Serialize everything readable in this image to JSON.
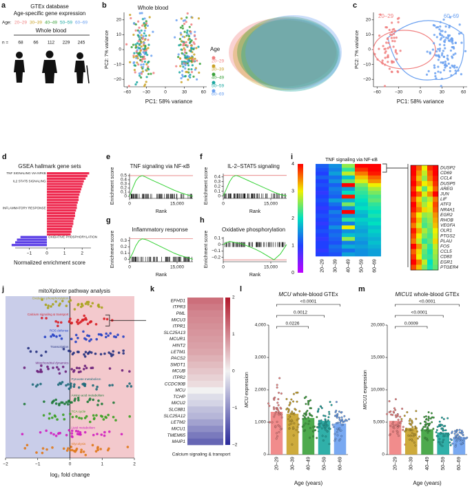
{
  "age_groups": [
    "20–29",
    "30–39",
    "40–49",
    "50–59",
    "60–69"
  ],
  "age_colors": [
    "#f07f7f",
    "#c9a227",
    "#3aa13a",
    "#1aa7a0",
    "#6aa0f0"
  ],
  "panel_a": {
    "letter": "a",
    "title": "GTEx database",
    "subtitle": "Age-specific gene expression",
    "age_label": "Age:",
    "tissue": "Whole blood",
    "n_label": "n =",
    "n": [
      68,
      66,
      112,
      229,
      245
    ]
  },
  "panel_b": {
    "letter": "b",
    "title": "Whole blood",
    "xlabel": "PC1: 58% variance",
    "ylabel": "PC2: 7% variance",
    "legend_title": "Age",
    "xlim": [
      -65,
      65
    ],
    "ylim": [
      -25,
      25
    ],
    "xticks": [
      {
        "value": -60,
        "label": "−60"
      },
      {
        "value": -30,
        "label": "−30"
      },
      0,
      30,
      60
    ],
    "yticks": [
      {
        "value": -20,
        "label": "−20"
      },
      {
        "value": -10,
        "label": "−10"
      },
      0,
      10,
      20
    ]
  },
  "panel_c": {
    "letter": "c",
    "xlabel": "PC1: 58% variance",
    "ylabel": "PC2: 7% variance",
    "xlim": [
      -65,
      65
    ],
    "ylim": [
      -25,
      25
    ],
    "xticks": [
      {
        "value": -60,
        "label": "−60"
      },
      {
        "value": -30,
        "label": "−30"
      },
      0,
      30,
      60
    ],
    "yticks": [
      {
        "value": -20,
        "label": "−20"
      },
      {
        "value": -10,
        "label": "−10"
      },
      0,
      10,
      20
    ]
  },
  "panel_d": {
    "letter": "d",
    "type": "bar",
    "title": "GSEA hallmark gene sets",
    "xlabel": "Normalized enrichment score",
    "categories": [
      "TNF SIGNALING VIA NFKB",
      null,
      null,
      "IL2 STAT5 SIGNALING",
      null,
      null,
      null,
      null,
      null,
      null,
      null,
      null,
      null,
      "INFLAMMATORY RESPONSE",
      null,
      null,
      null,
      null,
      null,
      null,
      null,
      null,
      null,
      null,
      "OXIDATIVE PHOSPHORYLATION",
      null,
      null,
      null
    ],
    "values": [
      2.4,
      2.3,
      2.2,
      2.1,
      2.05,
      2.0,
      1.95,
      1.9,
      1.85,
      1.8,
      1.8,
      1.75,
      1.7,
      1.7,
      1.65,
      1.6,
      1.6,
      1.55,
      1.5,
      1.5,
      1.45,
      1.4,
      1.4,
      1.35,
      -1.5,
      -1.7,
      -1.8,
      -2.0
    ],
    "color_positive": "#ee2a50",
    "color_negative": "#5a3ee6",
    "xlim": [
      -1.8,
      2.5
    ],
    "xticks": [
      {
        "value": -1,
        "label": "−1"
      },
      0,
      1,
      2
    ]
  },
  "panel_efgh": [
    {
      "letter": "e",
      "title": "TNF signaling via NF-κB",
      "ylabel": "Enrichment score",
      "xlabel": "Rank",
      "xlim": [
        0,
        20000
      ],
      "xticks": [
        0,
        {
          "value": 15000,
          "label": "15,000"
        }
      ],
      "ylim": [
        -0.05,
        0.55
      ],
      "yticks": [
        0,
        0.1,
        0.2,
        0.3,
        0.4,
        0.5
      ],
      "es_line": 0.5,
      "x": [
        0,
        1000,
        2000,
        3000,
        4000,
        5000,
        6000,
        8000,
        10000,
        12000,
        14000,
        16000,
        18000,
        20000
      ],
      "values": [
        0,
        0.2,
        0.38,
        0.47,
        0.5,
        0.47,
        0.43,
        0.36,
        0.29,
        0.22,
        0.15,
        0.09,
        0.04,
        0
      ]
    },
    {
      "letter": "f",
      "title": "IL-2–STAT5 signaling",
      "ylabel": "Enrichment score",
      "xlabel": "Rank",
      "xlim": [
        0,
        20000
      ],
      "xticks": [
        0,
        {
          "value": 15000,
          "label": "15,000"
        }
      ],
      "ylim": [
        -0.05,
        0.47
      ],
      "yticks": [
        0,
        0.1,
        0.2,
        0.3,
        0.4
      ],
      "es_line": 0.43,
      "x": [
        0,
        1000,
        2000,
        3000,
        4000,
        5000,
        6000,
        8000,
        10000,
        12000,
        14000,
        16000,
        18000,
        20000
      ],
      "values": [
        0,
        0.15,
        0.3,
        0.4,
        0.43,
        0.41,
        0.38,
        0.32,
        0.26,
        0.2,
        0.14,
        0.08,
        0.03,
        0
      ]
    },
    {
      "letter": "g",
      "title": "Inflammatory response",
      "ylabel": "Enrichment score",
      "xlabel": "Rank",
      "xlim": [
        0,
        20000
      ],
      "xticks": [
        0,
        {
          "value": 15000,
          "label": "15,000"
        }
      ],
      "ylim": [
        -0.04,
        0.36
      ],
      "yticks": [
        0,
        0.1,
        0.2,
        0.3
      ],
      "es_line": 0.33,
      "x": [
        0,
        1000,
        2000,
        3000,
        4000,
        5000,
        6000,
        8000,
        10000,
        12000,
        14000,
        16000,
        18000,
        20000
      ],
      "values": [
        0,
        0.1,
        0.22,
        0.3,
        0.33,
        0.32,
        0.3,
        0.25,
        0.2,
        0.15,
        0.1,
        0.06,
        0.03,
        0
      ]
    },
    {
      "letter": "h",
      "title": "Oxidative phosphorylation",
      "ylabel": "Enrichment score",
      "xlabel": "Rank",
      "xlim": [
        0,
        20000
      ],
      "xticks": [
        0,
        {
          "value": 15000,
          "label": "15,000"
        }
      ],
      "ylim": [
        -0.27,
        0.12
      ],
      "yticks": [
        {
          "value": -0.2,
          "label": "−0.2"
        },
        {
          "value": -0.1,
          "label": "−0.1"
        },
        0,
        0.1
      ],
      "es_line": -0.24,
      "x": [
        0,
        1000,
        2000,
        3000,
        4000,
        5000,
        6000,
        8000,
        10000,
        12000,
        14000,
        16000,
        18000,
        20000
      ],
      "values": [
        0,
        0.03,
        0.05,
        0.04,
        0.03,
        0.02,
        0.01,
        -0.03,
        -0.07,
        -0.12,
        -0.18,
        -0.24,
        -0.15,
        0
      ]
    }
  ],
  "panel_i": {
    "letter": "i",
    "title": "TNF signaling via NF-κB",
    "clim": [
      0,
      4
    ],
    "cbar_ticks": [
      0,
      1,
      2,
      3,
      4
    ],
    "matrix": [
      [
        1.2,
        1.5,
        2.6,
        4,
        4
      ],
      [
        1.1,
        1.4,
        2.2,
        3.8,
        4
      ],
      [
        1.0,
        1.6,
        2.8,
        3.5,
        3.9
      ],
      [
        1.2,
        1.3,
        1.8,
        3.2,
        3.6
      ],
      [
        1.0,
        1.5,
        2.4,
        2.9,
        3.4
      ],
      [
        1.1,
        1.2,
        4,
        2.5,
        3.0
      ],
      [
        1.0,
        1.4,
        1.6,
        2.3,
        2.7
      ],
      [
        0.9,
        1.3,
        2.0,
        2.2,
        2.5
      ],
      [
        1.0,
        1.2,
        3.9,
        2.1,
        2.3
      ],
      [
        1.1,
        1.6,
        1.7,
        2.0,
        2.4
      ],
      [
        1.0,
        1.3,
        2.5,
        1.9,
        2.2
      ],
      [
        0.9,
        1.1,
        1.5,
        2.0,
        2.1
      ],
      [
        1.0,
        1.4,
        4,
        1.8,
        2.0
      ],
      [
        1.1,
        1.2,
        1.6,
        1.7,
        2.1
      ],
      [
        1.0,
        1.3,
        2.2,
        1.9,
        1.9
      ],
      [
        0.9,
        1.2,
        1.4,
        1.8,
        2.0
      ],
      [
        1.0,
        1.5,
        3.0,
        1.7,
        1.8
      ],
      [
        1.1,
        1.2,
        1.5,
        1.6,
        1.9
      ],
      [
        1.0,
        1.3,
        1.8,
        1.7,
        1.8
      ],
      [
        0.9,
        1.2,
        2.6,
        1.6,
        1.7
      ],
      [
        1.0,
        1.1,
        1.4,
        1.5,
        1.8
      ],
      [
        1.0,
        1.3,
        1.7,
        1.6,
        1.7
      ],
      [
        0.9,
        1.2,
        1.3,
        1.5,
        1.6
      ],
      [
        1.0,
        1.1,
        1.6,
        1.5,
        1.6
      ]
    ],
    "genes": [
      "DUSP2",
      "CD69",
      "CCL4",
      "DUSP5",
      "AREG",
      "JUN",
      "LIF",
      "ATF3",
      "NR4A1",
      "EGR2",
      "RHOB",
      "VEGFA",
      "OLR1",
      "PTGS2",
      "PLAU",
      "FOS",
      "CCL5",
      "CD83",
      "EGR1",
      "PTGER4"
    ],
    "zoom": [
      [
        4,
        3.6,
        3.0,
        3.8,
        4
      ],
      [
        4,
        3.4,
        2.8,
        3.6,
        4
      ],
      [
        3.9,
        3.2,
        2.6,
        3.5,
        3.9
      ],
      [
        4,
        3.5,
        3.0,
        3.2,
        3.8
      ],
      [
        3.8,
        3.0,
        2.4,
        3.0,
        3.6
      ],
      [
        4,
        3.6,
        2.9,
        3.4,
        4
      ],
      [
        3.7,
        3.1,
        2.5,
        2.8,
        3.5
      ],
      [
        4,
        3.3,
        2.7,
        3.0,
        3.7
      ],
      [
        3.9,
        3.5,
        3.1,
        2.9,
        3.6
      ],
      [
        3.6,
        3.0,
        2.6,
        2.7,
        3.4
      ],
      [
        3.8,
        3.2,
        2.4,
        2.6,
        3.3
      ],
      [
        3.5,
        2.9,
        2.3,
        2.5,
        3.2
      ],
      [
        3.9,
        3.3,
        2.7,
        2.4,
        3.0
      ],
      [
        3.7,
        3.0,
        2.5,
        2.3,
        2.9
      ],
      [
        3.5,
        2.8,
        2.2,
        2.4,
        3.1
      ],
      [
        4,
        3.4,
        2.6,
        2.2,
        2.8
      ],
      [
        3.6,
        3.1,
        2.4,
        2.1,
        2.7
      ],
      [
        3.8,
        3.0,
        2.3,
        2.2,
        2.6
      ],
      [
        4,
        3.5,
        2.8,
        2.0,
        2.5
      ],
      [
        3.7,
        3.2,
        2.5,
        2.1,
        2.4
      ]
    ]
  },
  "panel_j": {
    "letter": "j",
    "title": "mitoXplorer pathway analysis",
    "xlabel": "log₂ fold change",
    "categories": [
      "Oxidative phosphorylation",
      "Calcium signaling & transport",
      "ROS defense",
      "Transcription",
      "Mitochondrial dynamics",
      "Pyruvate metabolism",
      "Amino acid metabolism",
      "TCA cycle",
      "Lipid metabolism",
      "Glycolysis"
    ],
    "colors": [
      "#a9a31c",
      "#d81f26",
      "#2340c4",
      "#23307e",
      "#6a1f7a",
      "#1f6a7a",
      "#1f7a3a",
      "#3aa020",
      "#d020c0",
      "#e07818"
    ],
    "xlim": [
      -2,
      2
    ],
    "xticks": [
      {
        "value": -2,
        "label": "−2"
      },
      {
        "value": -1,
        "label": "−1"
      },
      0,
      1,
      2
    ]
  },
  "panel_k": {
    "letter": "k",
    "xlabel": "Calcium signaling & transport",
    "clim": [
      -2,
      2
    ],
    "cbar_ticks": [
      2,
      1,
      0,
      {
        "value": -1,
        "label": "−1"
      },
      {
        "value": -2,
        "label": "−2"
      }
    ],
    "genes": [
      "EFHD1",
      "ITPR3",
      "PML",
      "MICU3",
      "ITPR1",
      "SLC25A13",
      "MCUR1",
      "HINT2",
      "LETM1",
      "PACS2",
      "SMDT1",
      "MCUB",
      "ITPR2",
      "CCDC90B",
      "MCU",
      "TCHP",
      "MICU2",
      "SLC8B1",
      "SLC25A12",
      "LETM2",
      "MICU1",
      "TMEM65",
      "MAIP1"
    ],
    "values": [
      1.2,
      1.1,
      1.0,
      0.95,
      0.9,
      0.85,
      0.8,
      0.75,
      0.7,
      0.6,
      0.5,
      0.4,
      0.3,
      0.2,
      0,
      -0.2,
      -0.3,
      -0.5,
      -0.6,
      -0.8,
      -1.0,
      -1.2,
      -1.4
    ]
  },
  "panel_l": {
    "letter": "l",
    "type": "bar",
    "title_gene": "MCU",
    "title_rest": "whole-blood GTEx",
    "ylabel_rest": "expression",
    "xlabel": "Age (years)",
    "values": [
      1320,
      1260,
      1130,
      1040,
      960
    ],
    "ylim": [
      0,
      4000
    ],
    "yticks": [
      0,
      {
        "value": 1000,
        "label": "1,000"
      },
      {
        "value": 2000,
        "label": "2,000"
      },
      {
        "value": 3000,
        "label": "3,000"
      },
      {
        "value": 4000,
        "label": "4,000"
      }
    ],
    "annotations": [
      "<0.0001",
      "0.0012",
      "0.0226"
    ]
  },
  "panel_m": {
    "letter": "m",
    "type": "bar",
    "title_gene": "MICU1",
    "title_rest": "whole-blood GTEx",
    "ylabel_rest": "expression",
    "xlabel": "Age (years)",
    "values": [
      5200,
      4100,
      3900,
      3400,
      2700
    ],
    "ylim": [
      0,
      20000
    ],
    "yticks": [
      0,
      {
        "value": 5000,
        "label": "5,000"
      },
      {
        "value": 10000,
        "label": "10,000"
      },
      {
        "value": 15000,
        "label": "15,000"
      },
      {
        "value": 20000,
        "label": "20,000"
      }
    ],
    "annotations": [
      "<0.0001",
      "<0.0001",
      "0.0009"
    ]
  }
}
